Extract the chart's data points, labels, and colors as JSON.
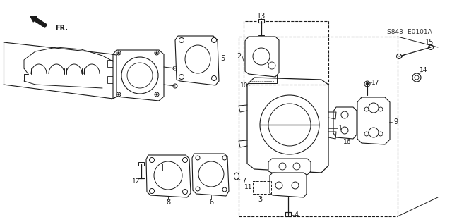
{
  "background_color": "#ffffff",
  "line_color": "#1a1a1a",
  "diagram_code": "S843- E0101A",
  "fr_label": "FR.",
  "fig_width": 6.4,
  "fig_height": 3.15,
  "dpi": 100
}
